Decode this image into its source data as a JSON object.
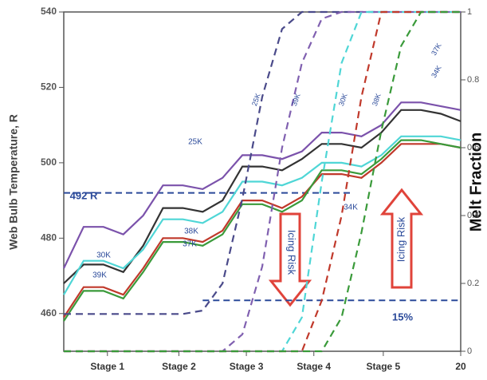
{
  "chart_data": {
    "type": "line",
    "ylabel": "Web Bulb Temperature, R",
    "y2label": "Melt Fraction",
    "x": [
      0,
      1,
      2,
      3,
      4,
      5,
      6,
      7,
      8,
      9,
      10,
      11,
      12,
      13,
      14,
      15,
      16,
      17,
      18,
      19,
      20
    ],
    "xlim": [
      0,
      20
    ],
    "xticks": [
      {
        "value": 2.2,
        "label": "Stage 1"
      },
      {
        "value": 5.8,
        "label": "Stage 2"
      },
      {
        "value": 9.2,
        "label": "Stage 3"
      },
      {
        "value": 12.6,
        "label": "Stage 4"
      },
      {
        "value": 16.1,
        "label": "Stage 5"
      },
      20
    ],
    "ylim": [
      450,
      540
    ],
    "yticks": [
      460,
      480,
      500,
      520,
      540
    ],
    "y2lim": [
      0,
      1
    ],
    "y2ticks": [
      0,
      0.2,
      0.4,
      0.6,
      0.8,
      1
    ],
    "series": [
      {
        "color": "#7b52ab",
        "values": [
          472,
          483,
          483,
          481,
          486,
          494,
          494,
          493,
          496,
          502,
          502,
          501,
          503,
          508,
          508,
          507,
          510,
          516,
          516,
          515,
          514
        ]
      },
      {
        "color": "#333333",
        "values": [
          468,
          473,
          473,
          471,
          478,
          488,
          488,
          487,
          490,
          499,
          499,
          498,
          501,
          505,
          505,
          504,
          508,
          514,
          514,
          513,
          511
        ]
      },
      {
        "color": "#4fd6d6",
        "values": [
          465,
          474,
          474,
          472,
          477,
          485,
          485,
          484,
          487,
          495,
          495,
          494,
          496,
          500,
          500,
          499,
          502,
          507,
          507,
          507,
          506
        ]
      },
      {
        "color": "#c0392b",
        "values": [
          459,
          467,
          467,
          465,
          472,
          480,
          480,
          479,
          482,
          490,
          490,
          488,
          491,
          497,
          497,
          496,
          500,
          505,
          505,
          505,
          504
        ]
      },
      {
        "color": "#3a9a3a",
        "values": [
          458,
          466,
          466,
          464,
          471,
          479,
          479,
          478,
          481,
          489,
          489,
          487,
          490,
          498,
          498,
          497,
          501,
          506,
          506,
          505,
          504
        ]
      },
      {
        "color": "#4a4a8a",
        "axis": "y2",
        "dashed": true,
        "values": [
          0.11,
          0.11,
          0.11,
          0.11,
          0.11,
          0.11,
          0.11,
          0.12,
          0.2,
          0.45,
          0.75,
          0.95,
          1,
          1,
          1,
          1,
          1,
          1,
          1,
          1,
          1
        ]
      },
      {
        "color": "#8060b0",
        "axis": "y2",
        "dashed": true,
        "values": [
          0,
          0,
          0,
          0,
          0,
          0,
          0,
          0,
          0,
          0.05,
          0.25,
          0.6,
          0.85,
          0.98,
          1,
          1,
          1,
          1,
          1,
          1,
          1
        ]
      },
      {
        "color": "#4fd6d6",
        "axis": "y2",
        "dashed": true,
        "values": [
          0,
          0,
          0,
          0,
          0,
          0,
          0,
          0,
          0,
          0,
          0,
          0,
          0.1,
          0.5,
          0.85,
          1,
          1,
          1,
          1,
          1,
          1
        ]
      },
      {
        "color": "#c0392b",
        "axis": "y2",
        "dashed": true,
        "values": [
          0,
          0,
          0,
          0,
          0,
          0,
          0,
          0,
          0,
          0,
          0,
          0,
          0,
          0.15,
          0.4,
          0.75,
          1,
          1,
          1,
          1,
          1
        ]
      },
      {
        "color": "#3a9a3a",
        "axis": "y2",
        "dashed": true,
        "values": [
          0,
          0,
          0,
          0,
          0,
          0,
          0,
          0,
          0,
          0,
          0,
          0,
          0,
          0,
          0.1,
          0.35,
          0.65,
          0.9,
          1,
          1,
          1
        ]
      }
    ],
    "reference_lines": [
      {
        "axis": "y",
        "value": 492,
        "x_range": [
          0,
          14.5
        ]
      },
      {
        "axis": "y2",
        "value": 0.15,
        "x_range": [
          7,
          20
        ]
      }
    ],
    "annotations": [
      "492 R",
      "25K",
      "30K",
      "39K",
      "38K",
      "37K",
      "34K",
      "15%",
      "Icing Risk",
      "Icing Risk",
      "25K",
      "39K",
      "30K",
      "38K",
      "37K",
      "34K"
    ]
  }
}
